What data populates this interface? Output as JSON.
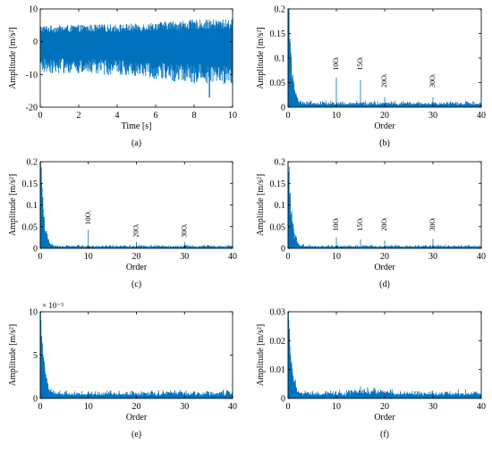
{
  "colors": {
    "signal": "#0072BD",
    "axis": "#000000",
    "background": "#ffffff"
  },
  "chart_data": [
    {
      "id": "a",
      "panel_label": "(a)",
      "type": "line",
      "xlabel": "Time [s]",
      "ylabel": "Amplitude [m/s²]",
      "xlim": [
        0,
        10
      ],
      "ylim": [
        -20,
        10
      ],
      "x_ticks": [
        0,
        2,
        4,
        6,
        8,
        10
      ],
      "y_ticks": [
        -20,
        -10,
        0,
        10
      ],
      "x_tick_labels": [
        "0",
        "2",
        "4",
        "6",
        "8",
        "10"
      ],
      "y_tick_labels": [
        "-20",
        "-10",
        "0",
        "10"
      ],
      "signal": {
        "kind": "time",
        "mean": 0,
        "envelope": [
          [
            0,
            5
          ],
          [
            5,
            5.5
          ],
          [
            7,
            6.5
          ],
          [
            10,
            7
          ]
        ],
        "min_peak": -17,
        "min_peak_x": 8.8
      },
      "annotations": []
    },
    {
      "id": "b",
      "panel_label": "(b)",
      "type": "line",
      "xlabel": "Order",
      "ylabel": "Amplitude [m/s²]",
      "xlim": [
        0,
        40
      ],
      "ylim": [
        0,
        0.2
      ],
      "x_ticks": [
        0,
        10,
        20,
        30,
        40
      ],
      "y_ticks": [
        0,
        0.05,
        0.1,
        0.15,
        0.2
      ],
      "x_tick_labels": [
        "0",
        "10",
        "20",
        "30",
        "40"
      ],
      "y_tick_labels": [
        "0",
        "0.05",
        "0.1",
        "0.15",
        "0.2"
      ],
      "signal": {
        "kind": "spectrum",
        "dc": 0.2,
        "floor": 0.008,
        "peaks": [
          [
            10,
            0.06
          ],
          [
            15,
            0.055
          ],
          [
            20,
            0.02
          ],
          [
            30,
            0.02
          ]
        ]
      },
      "annotations": [
        {
          "order": 10,
          "text": "10Oᵢ",
          "y": 0.075
        },
        {
          "order": 15,
          "text": "15Oᵢ",
          "y": 0.075
        },
        {
          "order": 20,
          "text": "20Oᵢ",
          "y": 0.04
        },
        {
          "order": 30,
          "text": "30Oᵢ",
          "y": 0.04
        }
      ]
    },
    {
      "id": "c",
      "panel_label": "(c)",
      "type": "line",
      "xlabel": "Order",
      "ylabel": "Amplitude [m/s²]",
      "xlim": [
        0,
        40
      ],
      "ylim": [
        0,
        0.2
      ],
      "x_ticks": [
        0,
        10,
        20,
        30,
        40
      ],
      "y_ticks": [
        0,
        0.05,
        0.1,
        0.15,
        0.2
      ],
      "x_tick_labels": [
        "0",
        "10",
        "20",
        "30",
        "40"
      ],
      "y_tick_labels": [
        "0",
        "0.05",
        "0.1",
        "0.15",
        "0.2"
      ],
      "signal": {
        "kind": "spectrum",
        "dc": 0.2,
        "floor": 0.005,
        "peaks": [
          [
            10,
            0.043
          ],
          [
            20,
            0.015
          ],
          [
            30,
            0.015
          ]
        ]
      },
      "annotations": [
        {
          "order": 10,
          "text": "10Oᵢ",
          "y": 0.055
        },
        {
          "order": 20,
          "text": "20Oᵢ",
          "y": 0.025
        },
        {
          "order": 30,
          "text": "30Oᵢ",
          "y": 0.025
        }
      ]
    },
    {
      "id": "d",
      "panel_label": "(d)",
      "type": "line",
      "xlabel": "Order",
      "ylabel": "Amplitude [m/s²]",
      "xlim": [
        0,
        40
      ],
      "ylim": [
        0,
        0.2
      ],
      "x_ticks": [
        0,
        10,
        20,
        30,
        40
      ],
      "y_ticks": [
        0,
        0.05,
        0.1,
        0.15,
        0.2
      ],
      "x_tick_labels": [
        "0",
        "10",
        "20",
        "30",
        "40"
      ],
      "y_tick_labels": [
        "0",
        "0.05",
        "0.1",
        "0.15",
        "0.2"
      ],
      "signal": {
        "kind": "spectrum",
        "dc": 0.2,
        "floor": 0.005,
        "peaks": [
          [
            10,
            0.025
          ],
          [
            15,
            0.02
          ],
          [
            20,
            0.018
          ],
          [
            30,
            0.022
          ]
        ]
      },
      "annotations": [
        {
          "order": 10,
          "text": "10Oᵢ",
          "y": 0.04
        },
        {
          "order": 15,
          "text": "15Oᵢ",
          "y": 0.04
        },
        {
          "order": 20,
          "text": "20Oᵢ",
          "y": 0.04
        },
        {
          "order": 30,
          "text": "30Oᵢ",
          "y": 0.04
        }
      ]
    },
    {
      "id": "e",
      "panel_label": "(e)",
      "type": "line",
      "xlabel": "Order",
      "ylabel": "Amplitude [m/s²]",
      "xlim": [
        0,
        40
      ],
      "ylim": [
        0,
        10
      ],
      "x_ticks": [
        0,
        10,
        20,
        30,
        40
      ],
      "y_ticks": [
        0,
        5,
        10
      ],
      "x_tick_labels": [
        "0",
        "10",
        "20",
        "30",
        "40"
      ],
      "y_tick_labels": [
        "0",
        "5",
        "10"
      ],
      "multiplier": "× 10⁻³",
      "signal": {
        "kind": "spectrum",
        "dc": 10,
        "floor": 0.6,
        "peaks": []
      },
      "annotations": []
    },
    {
      "id": "f",
      "panel_label": "(f)",
      "type": "line",
      "xlabel": "Order",
      "ylabel": "Amplitude [m/s²]",
      "xlim": [
        0,
        40
      ],
      "ylim": [
        0,
        0.03
      ],
      "x_ticks": [
        0,
        10,
        20,
        30,
        40
      ],
      "y_ticks": [
        0,
        0.01,
        0.02,
        0.03
      ],
      "x_tick_labels": [
        "0",
        "10",
        "20",
        "30",
        "40"
      ],
      "y_tick_labels": [
        "0",
        "0.01",
        "0.02",
        "0.03"
      ],
      "signal": {
        "kind": "spectrum",
        "dc": 0.03,
        "floor": 0.0018,
        "peaks": [
          [
            15,
            0.004
          ]
        ]
      },
      "annotations": []
    }
  ]
}
